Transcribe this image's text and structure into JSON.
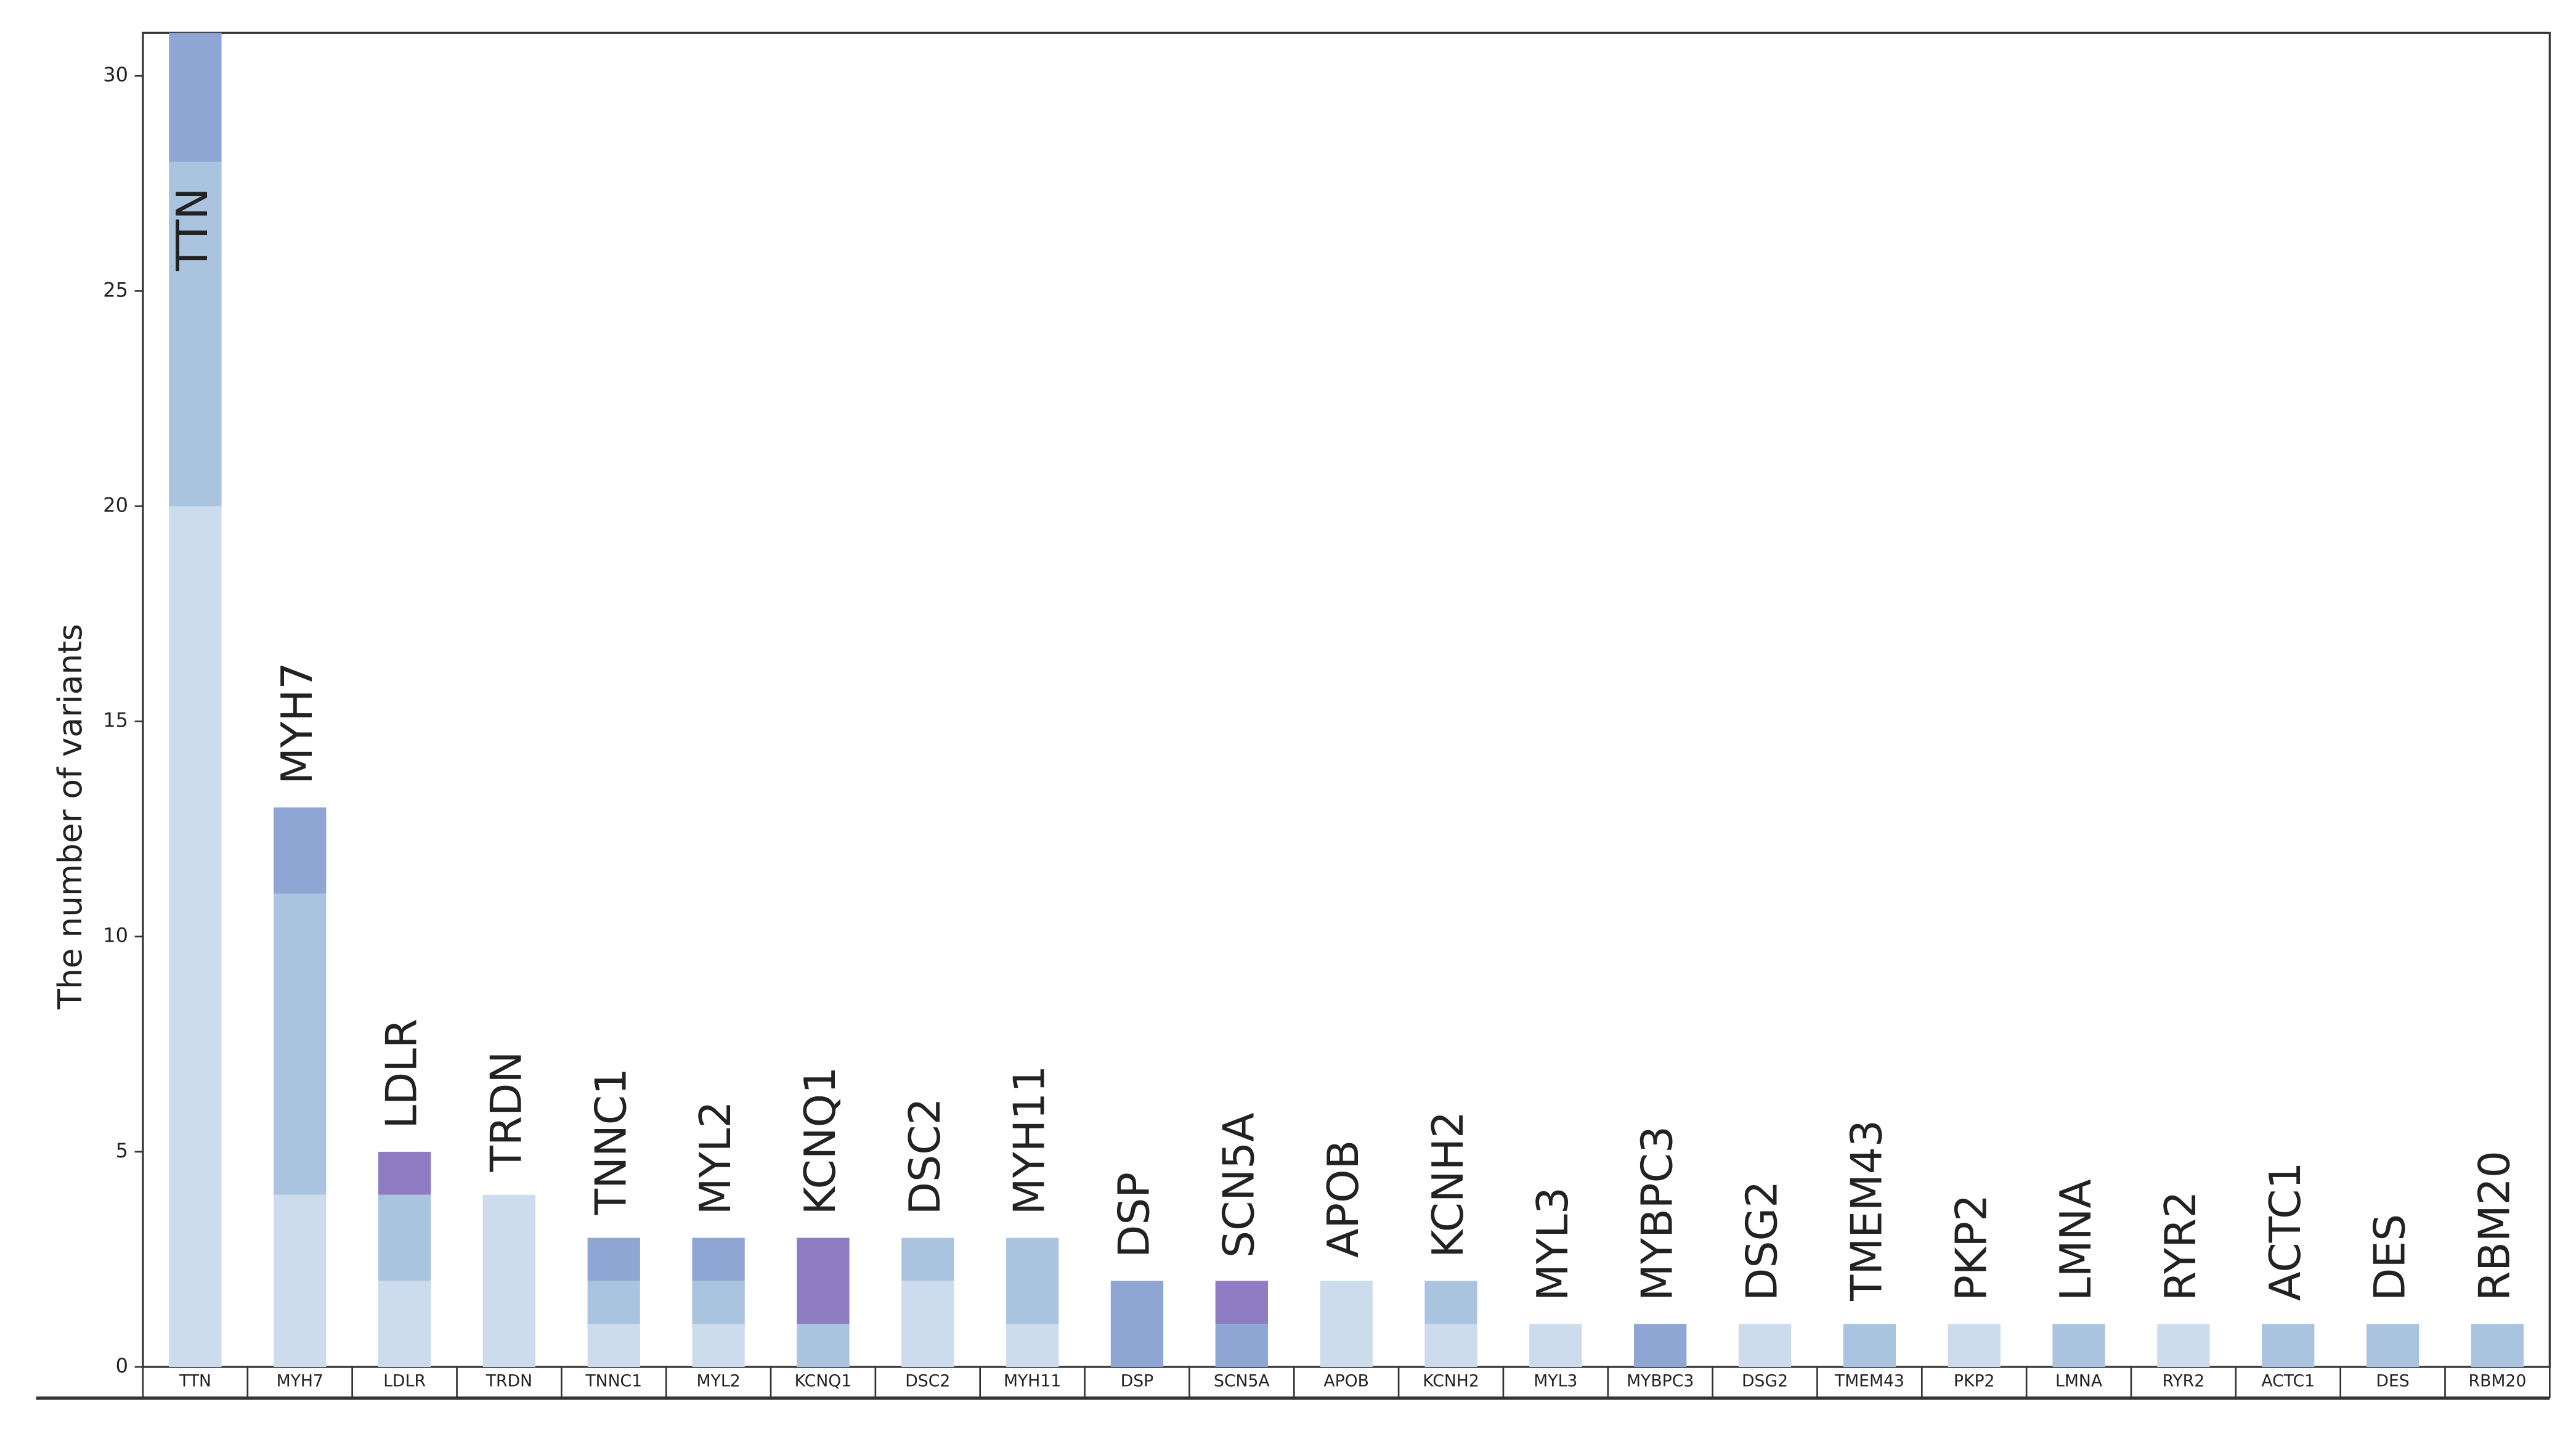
{
  "chart_data": {
    "type": "stacked_bar",
    "y_label": "The number of variants",
    "categories": [
      "TTN",
      "MYH7",
      "LDLR",
      "TRDN",
      "TNNC1",
      "MYL2",
      "KCNQ1",
      "DSC2",
      "MYH11",
      "DSP",
      "SCN5A",
      "APOB",
      "KCNH2",
      "MYL3",
      "MYBPC3",
      "DSG2",
      "TMEM43",
      "PKP2",
      "LMNA",
      "RYR2",
      "ACTC1",
      "DES",
      "RBM20"
    ],
    "series": [
      {
        "color": "#cddcec",
        "values": [
          20,
          4,
          2,
          4,
          1,
          1,
          0,
          2,
          1,
          0,
          0,
          2,
          1,
          1,
          0,
          1,
          0,
          1,
          0,
          1,
          0,
          0,
          0
        ]
      },
      {
        "color": "#aac4e0",
        "values": [
          8,
          7,
          2,
          0,
          1,
          1,
          1,
          1,
          2,
          0,
          0,
          0,
          1,
          0,
          0,
          0,
          1,
          0,
          1,
          0,
          1,
          1,
          1
        ]
      },
      {
        "color": "#8fa6d4",
        "values": [
          3,
          2,
          0,
          0,
          1,
          1,
          0,
          0,
          0,
          2,
          1,
          0,
          0,
          0,
          1,
          0,
          0,
          0,
          0,
          0,
          0,
          0,
          0
        ]
      },
      {
        "color": "#8e7cc3",
        "values": [
          0,
          0,
          1,
          0,
          0,
          0,
          2,
          0,
          0,
          0,
          1,
          0,
          0,
          0,
          0,
          0,
          0,
          0,
          0,
          0,
          0,
          0,
          0
        ]
      }
    ],
    "ylim": [
      0,
      31
    ],
    "yticks": [
      0,
      5,
      10,
      15,
      20,
      25,
      30
    ]
  }
}
